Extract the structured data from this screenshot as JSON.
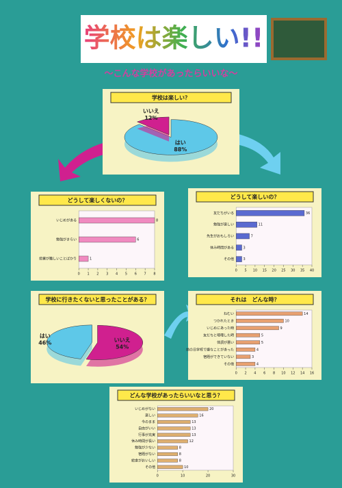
{
  "title": "学校は楽しい!!",
  "subtitle": "〜こんな学校があったらいいな〜",
  "chart_data": [
    {
      "type": "pie",
      "title": "学校は楽しい？",
      "categories": [
        "はい",
        "いいえ"
      ],
      "values": [
        88,
        12
      ],
      "value_labels": [
        "88%",
        "12%"
      ],
      "colors": [
        "#5ec8e8",
        "#d0208f"
      ]
    },
    {
      "type": "bar",
      "title": "どうして楽しくないの？",
      "categories": [
        "いじめがある",
        "勉強がきらい",
        "授業が難しいことばかり"
      ],
      "values": [
        8,
        6,
        1
      ],
      "color": "#f08ac0",
      "xlim": [
        0,
        8
      ],
      "xticks": [
        0,
        1,
        2,
        3,
        4,
        5,
        6,
        7,
        8
      ]
    },
    {
      "type": "bar",
      "title": "どうして楽しいの？",
      "categories": [
        "友だちがいる",
        "勉強が楽しい",
        "先生がおもしろい",
        "休み時間がある",
        "その他"
      ],
      "values": [
        36,
        11,
        7,
        3,
        3
      ],
      "color": "#5a6ad0",
      "xlim": [
        0,
        40
      ],
      "xticks": [
        0,
        5,
        10,
        15,
        20,
        25,
        30,
        35,
        40
      ]
    },
    {
      "type": "pie",
      "title": "学校に行きたくないと思ったことがある？",
      "categories": [
        "いいえ",
        "はい"
      ],
      "values": [
        54,
        46
      ],
      "value_labels": [
        "54%",
        "46%"
      ],
      "colors": [
        "#d0208f",
        "#5ec8e8"
      ]
    },
    {
      "type": "bar",
      "title": "それは　どんな時？",
      "categories": [
        "ねむい",
        "つかれたとき",
        "いじめにあった時",
        "友だちと喧嘩した時",
        "体調が悪い",
        "前の日学校で嫌なことがあった",
        "宿題ができていない",
        "その他"
      ],
      "values": [
        14,
        10,
        9,
        5,
        5,
        4,
        3,
        4
      ],
      "color": "#e8a070",
      "xlim": [
        0,
        16
      ],
      "xticks": [
        0,
        2,
        4,
        6,
        8,
        10,
        12,
        14,
        16
      ]
    },
    {
      "type": "bar",
      "title": "どんな学校があったらいいなと思う？",
      "categories": [
        "いじめがない",
        "楽しい",
        "今のまま",
        "自由がいい",
        "行事が充実",
        "休み時間が長い",
        "勉強が少ない",
        "宿題がない",
        "給食がおいしい",
        "その他"
      ],
      "values": [
        20,
        16,
        13,
        13,
        13,
        12,
        8,
        8,
        8,
        10
      ],
      "color": "#e0b070",
      "xlim": [
        0,
        30
      ],
      "xticks": [
        0,
        10,
        20,
        30
      ]
    }
  ]
}
